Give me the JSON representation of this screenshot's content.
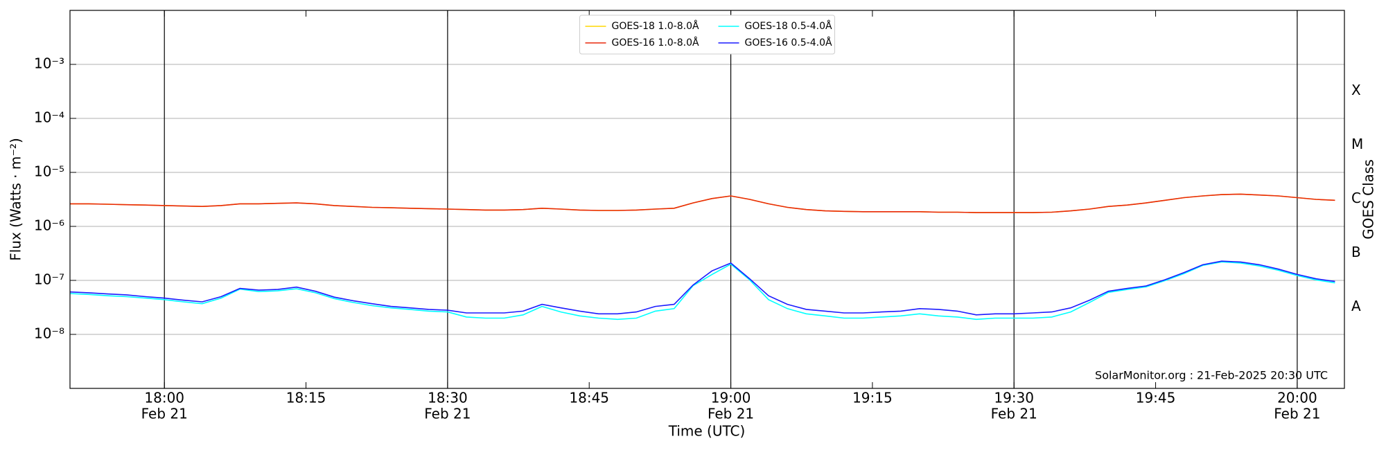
{
  "chart_data": {
    "type": "line",
    "xlabel": "Time (UTC)",
    "ylabel": "Flux (Watts · m⁻²)",
    "y2label": "GOES Class",
    "annotation": "SolarMonitor.org : 21-Feb-2025 20:30 UTC",
    "yscale": "log",
    "grid": true,
    "legend": "upper center",
    "xlim": [
      "17:50",
      "20:05"
    ],
    "xticks": [
      "18:00",
      "18:15",
      "18:30",
      "18:45",
      "19:00",
      "19:15",
      "19:30",
      "19:45",
      "20:00"
    ],
    "xtick_dates": [
      {
        "value": "18:00",
        "label": "Feb 21"
      },
      {
        "value": "18:30",
        "label": "Feb 21"
      },
      {
        "value": "19:00",
        "label": "Feb 21"
      },
      {
        "value": "19:30",
        "label": "Feb 21"
      },
      {
        "value": "20:00",
        "label": "Feb 21"
      }
    ],
    "ylim": [
      1e-09,
      0.01
    ],
    "yticks": [
      {
        "value": 1e-08,
        "label": "10⁻⁸"
      },
      {
        "value": 1e-07,
        "label": "10⁻⁷"
      },
      {
        "value": 1e-06,
        "label": "10⁻⁶"
      },
      {
        "value": 1e-05,
        "label": "10⁻⁵"
      },
      {
        "value": 0.0001,
        "label": "10⁻⁴"
      },
      {
        "value": 0.001,
        "label": "10⁻³"
      }
    ],
    "y2lim": [
      1e-09,
      0.01
    ],
    "y2ticks": [
      {
        "value": 3.2e-08,
        "label": "A"
      },
      {
        "value": 3.2e-07,
        "label": "B"
      },
      {
        "value": 3.2e-06,
        "label": "C"
      },
      {
        "value": 3.2e-05,
        "label": "M"
      },
      {
        "value": 0.00032,
        "label": "X"
      }
    ],
    "x": [
      "17:50",
      "17:52",
      "17:54",
      "17:56",
      "17:58",
      "18:00",
      "18:02",
      "18:04",
      "18:06",
      "18:08",
      "18:10",
      "18:12",
      "18:14",
      "18:16",
      "18:18",
      "18:20",
      "18:22",
      "18:24",
      "18:26",
      "18:28",
      "18:30",
      "18:32",
      "18:34",
      "18:36",
      "18:38",
      "18:40",
      "18:42",
      "18:44",
      "18:46",
      "18:48",
      "18:50",
      "18:52",
      "18:54",
      "18:56",
      "18:58",
      "19:00",
      "19:02",
      "19:04",
      "19:06",
      "19:08",
      "19:10",
      "19:12",
      "19:14",
      "19:16",
      "19:18",
      "19:20",
      "19:22",
      "19:24",
      "19:26",
      "19:28",
      "19:30",
      "19:32",
      "19:34",
      "19:36",
      "19:38",
      "19:40",
      "19:42",
      "19:44",
      "19:46",
      "19:48",
      "19:50",
      "19:52",
      "19:54",
      "19:56",
      "19:58",
      "20:00",
      "20:02",
      "20:04"
    ],
    "series": [
      {
        "name": "GOES-18 1.0-8.0Å",
        "color": "#ffd700",
        "values": [
          2.62e-06,
          2.62e-06,
          2.57e-06,
          2.52e-06,
          2.48e-06,
          2.43e-06,
          2.38e-06,
          2.34e-06,
          2.43e-06,
          2.62e-06,
          2.62e-06,
          2.67e-06,
          2.72e-06,
          2.62e-06,
          2.43e-06,
          2.34e-06,
          2.25e-06,
          2.21e-06,
          2.17e-06,
          2.13e-06,
          2.09e-06,
          2.05e-06,
          2.01e-06,
          2.01e-06,
          2.05e-06,
          2.17e-06,
          2.09e-06,
          2.01e-06,
          1.97e-06,
          1.97e-06,
          2.01e-06,
          2.09e-06,
          2.17e-06,
          2.72e-06,
          3.28e-06,
          3.67e-06,
          3.16e-06,
          2.62e-06,
          2.25e-06,
          2.05e-06,
          1.94e-06,
          1.9e-06,
          1.87e-06,
          1.87e-06,
          1.87e-06,
          1.87e-06,
          1.83e-06,
          1.83e-06,
          1.8e-06,
          1.8e-06,
          1.8e-06,
          1.8e-06,
          1.83e-06,
          1.94e-06,
          2.09e-06,
          2.34e-06,
          2.48e-06,
          2.72e-06,
          3.04e-06,
          3.4e-06,
          3.67e-06,
          3.88e-06,
          3.96e-06,
          3.81e-06,
          3.67e-06,
          3.4e-06,
          3.16e-06,
          3.04e-06
        ]
      },
      {
        "name": "GOES-16 1.0-8.0Å",
        "color": "#e8290b",
        "values": [
          2.62e-06,
          2.62e-06,
          2.57e-06,
          2.52e-06,
          2.48e-06,
          2.43e-06,
          2.38e-06,
          2.34e-06,
          2.43e-06,
          2.62e-06,
          2.62e-06,
          2.67e-06,
          2.72e-06,
          2.62e-06,
          2.43e-06,
          2.34e-06,
          2.25e-06,
          2.21e-06,
          2.17e-06,
          2.13e-06,
          2.09e-06,
          2.05e-06,
          2.01e-06,
          2.01e-06,
          2.05e-06,
          2.17e-06,
          2.09e-06,
          2.01e-06,
          1.97e-06,
          1.97e-06,
          2.01e-06,
          2.09e-06,
          2.17e-06,
          2.72e-06,
          3.28e-06,
          3.67e-06,
          3.16e-06,
          2.62e-06,
          2.25e-06,
          2.05e-06,
          1.94e-06,
          1.9e-06,
          1.87e-06,
          1.87e-06,
          1.87e-06,
          1.87e-06,
          1.83e-06,
          1.83e-06,
          1.8e-06,
          1.8e-06,
          1.8e-06,
          1.8e-06,
          1.83e-06,
          1.94e-06,
          2.09e-06,
          2.34e-06,
          2.48e-06,
          2.72e-06,
          3.04e-06,
          3.4e-06,
          3.67e-06,
          3.88e-06,
          3.96e-06,
          3.81e-06,
          3.67e-06,
          3.4e-06,
          3.16e-06,
          3.04e-06
        ]
      },
      {
        "name": "GOES-18 0.5-4.0Å",
        "color": "#00ffff",
        "values": [
          5.7e-08,
          5.5e-08,
          5.2e-08,
          5e-08,
          4.7e-08,
          4.4e-08,
          4e-08,
          3.7e-08,
          4.7e-08,
          6.9e-08,
          6.2e-08,
          6.4e-08,
          7e-08,
          5.9e-08,
          4.6e-08,
          3.9e-08,
          3.4e-08,
          3.1e-08,
          2.9e-08,
          2.7e-08,
          2.6e-08,
          2.1e-08,
          2e-08,
          2e-08,
          2.3e-08,
          3.3e-08,
          2.6e-08,
          2.2e-08,
          2e-08,
          1.9e-08,
          2e-08,
          2.7e-08,
          3e-08,
          8e-08,
          1.28e-07,
          2e-07,
          1.02e-07,
          4.4e-08,
          3e-08,
          2.4e-08,
          2.2e-08,
          2e-08,
          2e-08,
          2.1e-08,
          2.2e-08,
          2.4e-08,
          2.2e-08,
          2.1e-08,
          1.9e-08,
          2e-08,
          2e-08,
          2e-08,
          2.1e-08,
          2.6e-08,
          3.9e-08,
          6e-08,
          6.8e-08,
          7.6e-08,
          9.9e-08,
          1.33e-07,
          1.9e-07,
          2.2e-07,
          2.1e-07,
          1.85e-07,
          1.54e-07,
          1.23e-07,
          1.02e-07,
          9e-08
        ]
      },
      {
        "name": "GOES-16 0.5-4.0Å",
        "color": "#1a1aff",
        "values": [
          6.1e-08,
          5.9e-08,
          5.6e-08,
          5.4e-08,
          5e-08,
          4.7e-08,
          4.3e-08,
          4e-08,
          5e-08,
          7.1e-08,
          6.6e-08,
          6.8e-08,
          7.5e-08,
          6.3e-08,
          4.9e-08,
          4.2e-08,
          3.7e-08,
          3.3e-08,
          3.1e-08,
          2.9e-08,
          2.8e-08,
          2.5e-08,
          2.5e-08,
          2.5e-08,
          2.7e-08,
          3.6e-08,
          3.1e-08,
          2.7e-08,
          2.4e-08,
          2.4e-08,
          2.6e-08,
          3.3e-08,
          3.6e-08,
          8.2e-08,
          1.5e-07,
          2.1e-07,
          1.07e-07,
          5.2e-08,
          3.6e-08,
          2.9e-08,
          2.7e-08,
          2.5e-08,
          2.5e-08,
          2.6e-08,
          2.7e-08,
          3e-08,
          2.9e-08,
          2.7e-08,
          2.3e-08,
          2.4e-08,
          2.4e-08,
          2.5e-08,
          2.6e-08,
          3.1e-08,
          4.3e-08,
          6.3e-08,
          7.1e-08,
          7.9e-08,
          1.03e-07,
          1.39e-07,
          1.95e-07,
          2.27e-07,
          2.19e-07,
          1.95e-07,
          1.62e-07,
          1.29e-07,
          1.07e-07,
          9.55e-08
        ]
      }
    ]
  }
}
